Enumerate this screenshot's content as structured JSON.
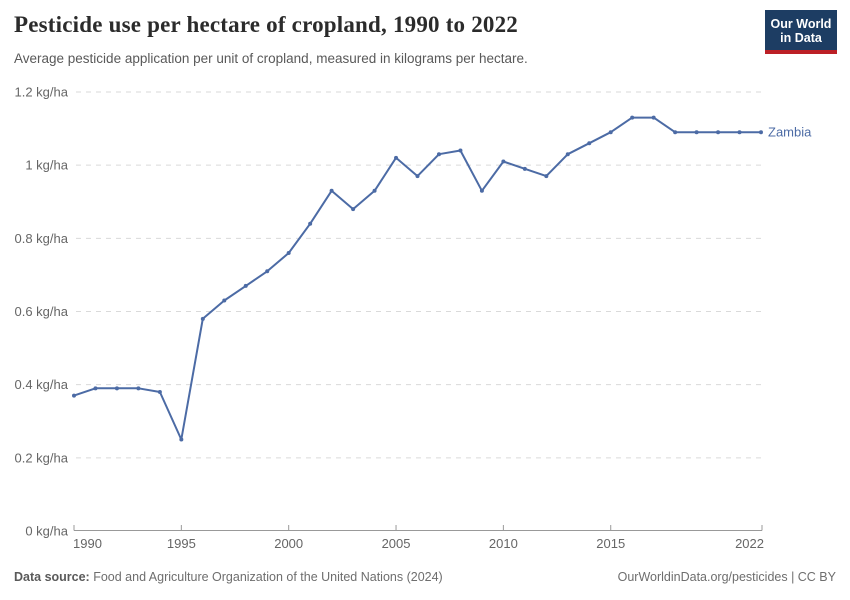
{
  "header": {
    "title": "Pesticide use per hectare of cropland, 1990 to 2022",
    "subtitle": "Average pesticide application per unit of cropland, measured in kilograms per hectare.",
    "logo": {
      "line1": "Our World",
      "line2": "in Data"
    }
  },
  "footer": {
    "source_label": "Data source:",
    "source_text": " Food and Agriculture Organization of the United Nations (2024)",
    "credit": "OurWorldinData.org/pesticides | CC BY"
  },
  "chart_data": {
    "type": "line",
    "title": "Pesticide use per hectare of cropland, 1990 to 2022",
    "subtitle": "Average pesticide application per unit of cropland, measured in kilograms per hectare.",
    "entity": "Zambia",
    "unit": "kg/ha",
    "x": [
      1990,
      1991,
      1992,
      1993,
      1994,
      1995,
      1996,
      1997,
      1998,
      1999,
      2000,
      2001,
      2002,
      2003,
      2004,
      2005,
      2006,
      2007,
      2008,
      2009,
      2010,
      2011,
      2012,
      2013,
      2014,
      2015,
      2016,
      2017,
      2018,
      2019,
      2020,
      2021,
      2022
    ],
    "series": [
      {
        "name": "Zambia",
        "values": [
          0.37,
          0.39,
          0.39,
          0.39,
          0.38,
          0.25,
          0.58,
          0.63,
          0.67,
          0.71,
          0.76,
          0.84,
          0.93,
          0.88,
          0.93,
          1.02,
          0.97,
          1.03,
          1.04,
          0.93,
          1.01,
          0.99,
          0.97,
          1.03,
          1.06,
          1.09,
          1.13,
          1.13,
          1.09,
          1.09,
          1.09,
          1.09,
          1.09
        ]
      }
    ],
    "ylim": [
      0,
      1.2
    ],
    "grid": true,
    "legend_position": "right-of-line-end",
    "yticks": [
      {
        "value": 0,
        "label": "0 kg/ha"
      },
      {
        "value": 0.2,
        "label": "0.2 kg/ha"
      },
      {
        "value": 0.4,
        "label": "0.4 kg/ha"
      },
      {
        "value": 0.6,
        "label": "0.6 kg/ha"
      },
      {
        "value": 0.8,
        "label": "0.8 kg/ha"
      },
      {
        "value": 1,
        "label": "1 kg/ha"
      },
      {
        "value": 1.2,
        "label": "1.2 kg/ha"
      }
    ],
    "xticks": [
      {
        "value": 1990,
        "label": "1990"
      },
      {
        "value": 1995,
        "label": "1995"
      },
      {
        "value": 2000,
        "label": "2000"
      },
      {
        "value": 2005,
        "label": "2005"
      },
      {
        "value": 2010,
        "label": "2010"
      },
      {
        "value": 2015,
        "label": "2015"
      },
      {
        "value": 2022,
        "label": "2022"
      }
    ],
    "colors": {
      "line": "#4c6ba5",
      "grid": "#dadada",
      "axis": "#999999",
      "tick_text": "#666666",
      "logo_bg": "#1d3d63",
      "logo_accent": "#bc2026"
    }
  }
}
